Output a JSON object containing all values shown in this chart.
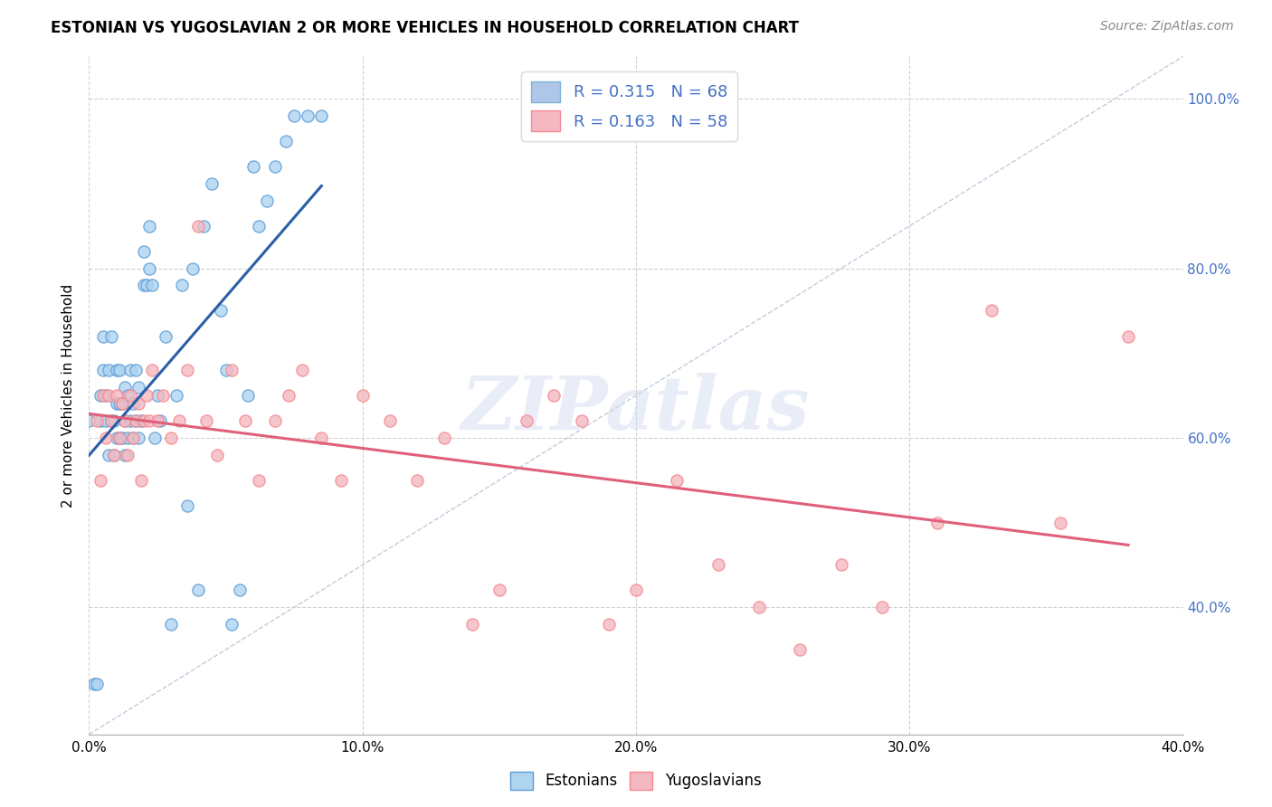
{
  "title": "ESTONIAN VS YUGOSLAVIAN 2 OR MORE VEHICLES IN HOUSEHOLD CORRELATION CHART",
  "source": "Source: ZipAtlas.com",
  "ylabel": "2 or more Vehicles in Household",
  "xlim": [
    0.0,
    0.4
  ],
  "ylim": [
    0.25,
    1.05
  ],
  "ytick_vals": [
    0.4,
    0.6,
    0.8,
    1.0
  ],
  "ytick_labels_right": [
    "40.0%",
    "60.0%",
    "80.0%",
    "100.0%"
  ],
  "xtick_vals": [
    0.0,
    0.05,
    0.1,
    0.15,
    0.2,
    0.25,
    0.3,
    0.35,
    0.4
  ],
  "xtick_labels": [
    "0.0%",
    "",
    "10.0%",
    "",
    "20.0%",
    "",
    "30.0%",
    "",
    "40.0%"
  ],
  "legend_items": [
    {
      "label": "R = 0.315   N = 68",
      "facecolor": "#aec6e8",
      "edgecolor": "#7fb3d9"
    },
    {
      "label": "R = 0.163   N = 58",
      "facecolor": "#f4b8c1",
      "edgecolor": "#f48a95"
    }
  ],
  "legend_labels": [
    "Estonians",
    "Yugoslavians"
  ],
  "watermark": "ZIPatlas",
  "blue_edge_color": "#5b9bd5",
  "blue_face_color": "#aed4f0",
  "pink_edge_color": "#f4878d",
  "pink_face_color": "#f4b8c1",
  "blue_trend_color": "#2b5ea7",
  "pink_trend_color": "#e0607a",
  "diagonal_color": "#b8c8d8",
  "estonians_x": [
    0.0,
    0.002,
    0.003,
    0.004,
    0.004,
    0.005,
    0.005,
    0.006,
    0.006,
    0.007,
    0.007,
    0.008,
    0.008,
    0.009,
    0.009,
    0.01,
    0.01,
    0.01,
    0.011,
    0.011,
    0.011,
    0.012,
    0.012,
    0.013,
    0.013,
    0.013,
    0.014,
    0.014,
    0.015,
    0.015,
    0.016,
    0.016,
    0.017,
    0.017,
    0.018,
    0.018,
    0.019,
    0.02,
    0.02,
    0.021,
    0.022,
    0.022,
    0.023,
    0.024,
    0.025,
    0.026,
    0.028,
    0.03,
    0.032,
    0.034,
    0.036,
    0.038,
    0.04,
    0.042,
    0.045,
    0.048,
    0.05,
    0.052,
    0.055,
    0.058,
    0.06,
    0.062,
    0.065,
    0.068,
    0.072,
    0.075,
    0.08,
    0.085
  ],
  "estonians_y": [
    0.62,
    0.31,
    0.31,
    0.62,
    0.65,
    0.68,
    0.72,
    0.62,
    0.65,
    0.58,
    0.68,
    0.62,
    0.72,
    0.58,
    0.62,
    0.6,
    0.64,
    0.68,
    0.6,
    0.64,
    0.68,
    0.6,
    0.64,
    0.58,
    0.62,
    0.66,
    0.6,
    0.65,
    0.62,
    0.68,
    0.6,
    0.64,
    0.62,
    0.68,
    0.6,
    0.66,
    0.62,
    0.78,
    0.82,
    0.78,
    0.8,
    0.85,
    0.78,
    0.6,
    0.65,
    0.62,
    0.72,
    0.38,
    0.65,
    0.78,
    0.52,
    0.8,
    0.42,
    0.85,
    0.9,
    0.75,
    0.68,
    0.38,
    0.42,
    0.65,
    0.92,
    0.85,
    0.88,
    0.92,
    0.95,
    0.98,
    0.98,
    0.98
  ],
  "yugoslavians_x": [
    0.003,
    0.004,
    0.005,
    0.006,
    0.007,
    0.008,
    0.009,
    0.01,
    0.011,
    0.012,
    0.013,
    0.014,
    0.015,
    0.016,
    0.017,
    0.018,
    0.019,
    0.02,
    0.021,
    0.022,
    0.023,
    0.025,
    0.027,
    0.03,
    0.033,
    0.036,
    0.04,
    0.043,
    0.047,
    0.052,
    0.057,
    0.062,
    0.068,
    0.073,
    0.078,
    0.085,
    0.092,
    0.1,
    0.11,
    0.12,
    0.13,
    0.14,
    0.15,
    0.16,
    0.17,
    0.18,
    0.19,
    0.2,
    0.215,
    0.23,
    0.245,
    0.26,
    0.275,
    0.29,
    0.31,
    0.33,
    0.355,
    0.38
  ],
  "yugoslavians_y": [
    0.62,
    0.55,
    0.65,
    0.6,
    0.65,
    0.62,
    0.58,
    0.65,
    0.6,
    0.64,
    0.62,
    0.58,
    0.65,
    0.6,
    0.62,
    0.64,
    0.55,
    0.62,
    0.65,
    0.62,
    0.68,
    0.62,
    0.65,
    0.6,
    0.62,
    0.68,
    0.85,
    0.62,
    0.58,
    0.68,
    0.62,
    0.55,
    0.62,
    0.65,
    0.68,
    0.6,
    0.55,
    0.65,
    0.62,
    0.55,
    0.6,
    0.38,
    0.42,
    0.62,
    0.65,
    0.62,
    0.38,
    0.42,
    0.55,
    0.45,
    0.4,
    0.35,
    0.45,
    0.4,
    0.5,
    0.75,
    0.5,
    0.72
  ]
}
